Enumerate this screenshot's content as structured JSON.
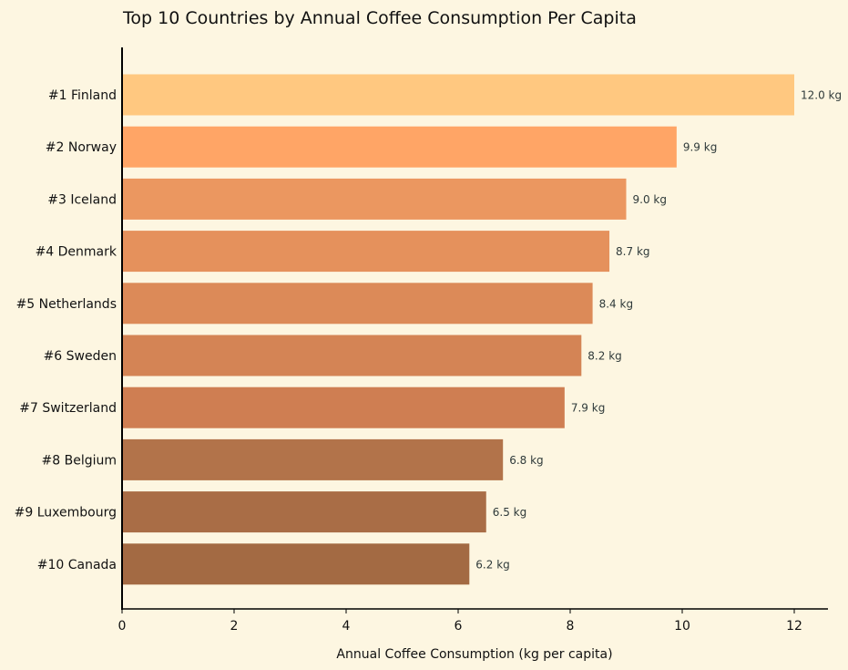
{
  "chart_data": {
    "type": "bar",
    "orientation": "horizontal",
    "title": "Top 10 Countries by Annual Coffee Consumption Per Capita",
    "xlabel": "Annual Coffee Consumption (kg per capita)",
    "ylabel": "",
    "xlim": [
      0,
      12.6
    ],
    "xticks": [
      0,
      2,
      4,
      6,
      8,
      10,
      12
    ],
    "grid": false,
    "categories": [
      "#1 Finland",
      "#2 Norway",
      "#3 Iceland",
      "#4 Denmark",
      "#5 Netherlands",
      "#6 Sweden",
      "#7 Switzerland",
      "#8 Belgium",
      "#9 Luxembourg",
      "#10 Canada"
    ],
    "values": [
      12.0,
      9.9,
      9.0,
      8.7,
      8.4,
      8.2,
      7.9,
      6.8,
      6.5,
      6.2
    ],
    "value_labels": [
      "12.0 kg",
      "9.9 kg",
      "9.0 kg",
      "8.7 kg",
      "8.4 kg",
      "8.2 kg",
      "7.9 kg",
      "6.8 kg",
      "6.5 kg",
      "6.2 kg"
    ],
    "colors": [
      "#ffc880",
      "#ffa566",
      "#eb9760",
      "#e5915c",
      "#dc8a58",
      "#d48455",
      "#cf7e52",
      "#b2734a",
      "#a96d46",
      "#a36a43"
    ]
  }
}
